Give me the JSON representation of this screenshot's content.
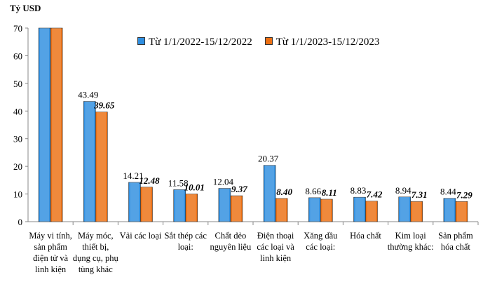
{
  "chart_data": {
    "type": "bar",
    "ylabel": "Tỷ USD",
    "ylim": [
      0,
      70
    ],
    "yticks": [
      "0",
      "10",
      "20",
      "30",
      "40",
      "50",
      "60",
      "70"
    ],
    "categories": [
      "Máy vi tính, sản phẩm điện tử và linh kiện",
      "Máy móc, thiết bị, dụng cụ, phụ tùng khác",
      "Vải các loại",
      "Sắt thép các loại:",
      "Chất dẻo nguyên liệu",
      "Điện thoại các loại và linh kiện",
      "Xăng dầu các loại:",
      "Hóa chất",
      "Kim loại thường khác:",
      "Sản phẩm hóa chất"
    ],
    "series": [
      {
        "name": "Từ 1/1/2022-15/12/2022",
        "color": "#2e8ee0",
        "values": [
          70,
          43.49,
          14.21,
          11.58,
          12.04,
          20.37,
          8.66,
          8.83,
          8.94,
          8.44
        ],
        "labels": [
          "",
          "43.49",
          "14.21",
          "11.58",
          "12.04",
          "20.37",
          "8.66",
          "8.83",
          "8.94",
          "8.44"
        ]
      },
      {
        "name": "Từ 1/1/2023-15/12/2023",
        "color": "#ec6f12",
        "values": [
          70,
          39.65,
          12.48,
          10.01,
          9.37,
          8.4,
          8.11,
          7.42,
          7.31,
          7.29
        ],
        "labels": [
          "",
          "39.65",
          "12.48",
          "10.01",
          "9.37",
          "8.40",
          "8.11",
          "7.42",
          "7.31",
          "7.29"
        ]
      }
    ],
    "legend": "top-right",
    "grid": false
  }
}
